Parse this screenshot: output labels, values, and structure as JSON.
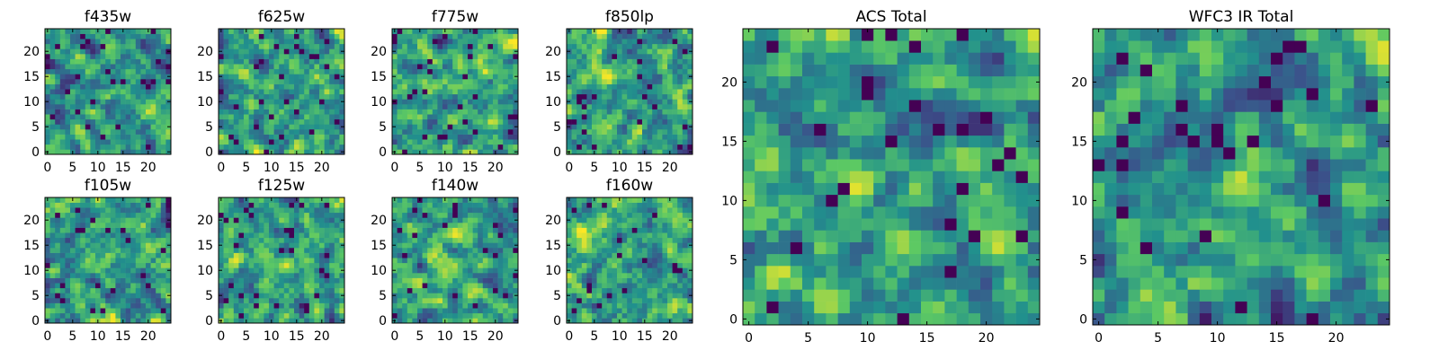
{
  "chart_data": [
    {
      "type": "heatmap",
      "title": "f435w",
      "seed": 11,
      "xticks": [
        "0",
        "5",
        "10",
        "15",
        "20"
      ],
      "yticks": [
        "0",
        "5",
        "10",
        "15",
        "20"
      ],
      "xlim": [
        0,
        24
      ],
      "ylim": [
        0,
        24
      ],
      "grid_size": 25
    },
    {
      "type": "heatmap",
      "title": "f625w",
      "seed": 23,
      "xticks": [
        "0",
        "5",
        "10",
        "15",
        "20"
      ],
      "yticks": [
        "0",
        "5",
        "10",
        "15",
        "20"
      ],
      "xlim": [
        0,
        24
      ],
      "ylim": [
        0,
        24
      ],
      "grid_size": 25
    },
    {
      "type": "heatmap",
      "title": "f775w",
      "seed": 37,
      "xticks": [
        "0",
        "5",
        "10",
        "15",
        "20"
      ],
      "yticks": [
        "0",
        "5",
        "10",
        "15",
        "20"
      ],
      "xlim": [
        0,
        24
      ],
      "ylim": [
        0,
        24
      ],
      "grid_size": 25
    },
    {
      "type": "heatmap",
      "title": "f850lp",
      "seed": 41,
      "xticks": [
        "0",
        "5",
        "10",
        "15",
        "20"
      ],
      "yticks": [
        "0",
        "5",
        "10",
        "15",
        "20"
      ],
      "xlim": [
        0,
        24
      ],
      "ylim": [
        0,
        24
      ],
      "grid_size": 25
    },
    {
      "type": "heatmap",
      "title": "f105w",
      "seed": 53,
      "xticks": [
        "0",
        "5",
        "10",
        "15",
        "20"
      ],
      "yticks": [
        "0",
        "5",
        "10",
        "15",
        "20"
      ],
      "xlim": [
        0,
        24
      ],
      "ylim": [
        0,
        24
      ],
      "grid_size": 25
    },
    {
      "type": "heatmap",
      "title": "f125w",
      "seed": 67,
      "xticks": [
        "0",
        "5",
        "10",
        "15",
        "20"
      ],
      "yticks": [
        "0",
        "5",
        "10",
        "15",
        "20"
      ],
      "xlim": [
        0,
        24
      ],
      "ylim": [
        0,
        24
      ],
      "grid_size": 25
    },
    {
      "type": "heatmap",
      "title": "f140w",
      "seed": 71,
      "xticks": [
        "0",
        "5",
        "10",
        "15",
        "20"
      ],
      "yticks": [
        "0",
        "5",
        "10",
        "15",
        "20"
      ],
      "xlim": [
        0,
        24
      ],
      "ylim": [
        0,
        24
      ],
      "grid_size": 25
    },
    {
      "type": "heatmap",
      "title": "f160w",
      "seed": 83,
      "xticks": [
        "0",
        "5",
        "10",
        "15",
        "20"
      ],
      "yticks": [
        "0",
        "5",
        "10",
        "15",
        "20"
      ],
      "xlim": [
        0,
        24
      ],
      "ylim": [
        0,
        24
      ],
      "grid_size": 25
    },
    {
      "type": "heatmap",
      "title": "ACS Total",
      "seed": 97,
      "xticks": [
        "0",
        "5",
        "10",
        "15",
        "20"
      ],
      "yticks": [
        "0",
        "5",
        "10",
        "15",
        "20"
      ],
      "xlim": [
        0,
        24
      ],
      "ylim": [
        0,
        24
      ],
      "grid_size": 25
    },
    {
      "type": "heatmap",
      "title": "WFC3 IR Total",
      "seed": 101,
      "xticks": [
        "0",
        "5",
        "10",
        "15",
        "20"
      ],
      "yticks": [
        "0",
        "5",
        "10",
        "15",
        "20"
      ],
      "xlim": [
        0,
        24
      ],
      "ylim": [
        0,
        24
      ],
      "grid_size": 25
    }
  ],
  "colormap": [
    "#440154",
    "#3b528b",
    "#21908d",
    "#5dc963",
    "#fde725"
  ]
}
